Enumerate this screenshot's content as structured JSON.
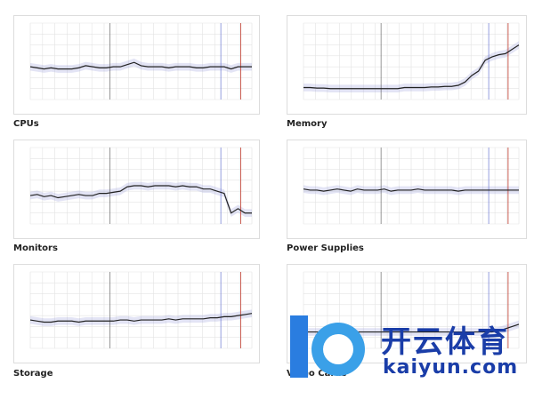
{
  "charts": [
    {
      "title": "CPUs",
      "values": [
        3.0,
        2.9,
        2.8,
        2.9,
        2.8,
        2.8,
        2.8,
        2.9,
        3.1,
        3.0,
        2.9,
        2.9,
        3.0,
        3.0,
        3.2,
        3.4,
        3.1,
        3.0,
        3.0,
        3.0,
        2.9,
        3.0,
        3.0,
        3.0,
        2.9,
        2.9,
        3.0,
        3.0,
        3.0,
        2.8,
        3.0,
        3.0,
        3.0
      ]
    },
    {
      "title": "Memory",
      "values": [
        1.1,
        1.1,
        1.05,
        1.05,
        1.0,
        1.0,
        1.0,
        1.0,
        1.0,
        1.0,
        1.0,
        1.0,
        1.0,
        1.0,
        1.0,
        1.1,
        1.1,
        1.1,
        1.1,
        1.15,
        1.15,
        1.2,
        1.2,
        1.3,
        1.6,
        2.2,
        2.6,
        3.6,
        3.9,
        4.1,
        4.2,
        4.6,
        5.0
      ]
    },
    {
      "title": "Monitors",
      "values": [
        2.6,
        2.7,
        2.5,
        2.6,
        2.4,
        2.5,
        2.6,
        2.7,
        2.6,
        2.6,
        2.8,
        2.8,
        2.9,
        3.0,
        3.4,
        3.5,
        3.5,
        3.4,
        3.5,
        3.5,
        3.5,
        3.4,
        3.5,
        3.4,
        3.4,
        3.2,
        3.2,
        3.0,
        2.8,
        1.0,
        1.4,
        1.0,
        1.0
      ]
    },
    {
      "title": "Power Supplies",
      "values": [
        3.2,
        3.1,
        3.1,
        3.0,
        3.1,
        3.2,
        3.1,
        3.0,
        3.2,
        3.1,
        3.1,
        3.1,
        3.2,
        3.0,
        3.1,
        3.1,
        3.1,
        3.2,
        3.1,
        3.1,
        3.1,
        3.1,
        3.1,
        3.0,
        3.1,
        3.1,
        3.1,
        3.1,
        3.1,
        3.1,
        3.1,
        3.1,
        3.1
      ]
    },
    {
      "title": "Storage",
      "values": [
        2.6,
        2.5,
        2.4,
        2.4,
        2.5,
        2.5,
        2.5,
        2.4,
        2.5,
        2.5,
        2.5,
        2.5,
        2.5,
        2.6,
        2.6,
        2.5,
        2.6,
        2.6,
        2.6,
        2.6,
        2.7,
        2.6,
        2.7,
        2.7,
        2.7,
        2.7,
        2.8,
        2.8,
        2.9,
        2.9,
        3.0,
        3.1,
        3.2
      ]
    },
    {
      "title": "Video Cards",
      "values": [
        1.5,
        1.5,
        1.5,
        1.5,
        1.5,
        1.5,
        1.5,
        1.5,
        1.5,
        1.5,
        1.5,
        1.5,
        1.5,
        1.5,
        1.5,
        1.5,
        1.5,
        1.5,
        1.5,
        1.5,
        1.5,
        1.5,
        1.5,
        1.5,
        1.5,
        1.5,
        1.5,
        1.5,
        1.5,
        1.6,
        1.8,
        2.0,
        2.2
      ]
    }
  ],
  "chart_data": {
    "type": "line",
    "ylim": [
      0,
      7
    ],
    "grid": true,
    "series_per_chart": [
      "CPUs",
      "Memory",
      "Monitors",
      "Power Supplies",
      "Storage",
      "Video Cards"
    ]
  },
  "watermark": {
    "text": "开云体育",
    "url": "kaiyun.com"
  },
  "colors": {
    "line": "#222222",
    "band": "#8f95d8",
    "vline_blue": "#7b86d6",
    "vline_red": "#c0392b"
  }
}
